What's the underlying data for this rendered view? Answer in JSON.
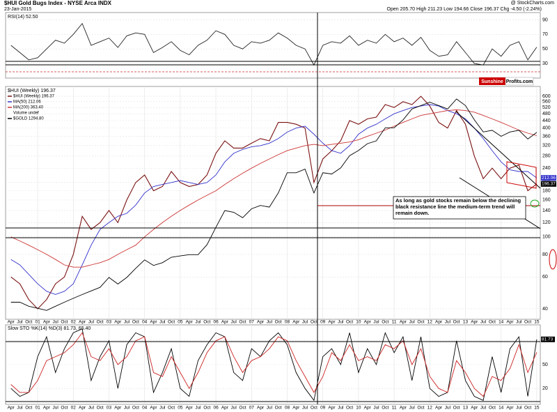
{
  "header": {
    "title": "$HUI Gold Bugs Index - NYSE Arca INDX",
    "date": "23-Jan-2015",
    "quote": "Open 205.70  High 211.23  Low 194.66  Close 196.37  Chg -4.50 (-2.24%)",
    "credit": "@ StockCharts.com"
  },
  "chart_data": [
    {
      "type": "line",
      "title": "RSI(14) 52.50",
      "x": [
        2000.25,
        2000.5,
        2000.75,
        2001,
        2001.25,
        2001.5,
        2001.75,
        2002,
        2002.25,
        2002.5,
        2002.75,
        2003,
        2003.25,
        2003.5,
        2003.75,
        2004,
        2004.25,
        2004.5,
        2004.75,
        2005,
        2005.25,
        2005.5,
        2005.75,
        2006,
        2006.25,
        2006.5,
        2006.75,
        2007,
        2007.25,
        2007.5,
        2007.75,
        2008,
        2008.25,
        2008.5,
        2008.75,
        2009,
        2009.25,
        2009.5,
        2009.75,
        2010,
        2010.25,
        2010.5,
        2010.75,
        2011,
        2011.25,
        2011.5,
        2011.75,
        2012,
        2012.25,
        2012.5,
        2012.75,
        2013,
        2013.25,
        2013.5,
        2013.75,
        2014,
        2014.25,
        2014.5,
        2014.75,
        2015
      ],
      "series": [
        {
          "name": "RSI(14)",
          "color": "#222222",
          "values": [
            55,
            45,
            35,
            38,
            50,
            62,
            58,
            70,
            85,
            55,
            60,
            65,
            52,
            68,
            72,
            70,
            45,
            52,
            60,
            48,
            42,
            55,
            62,
            75,
            70,
            55,
            50,
            60,
            58,
            62,
            72,
            65,
            55,
            50,
            28,
            55,
            60,
            58,
            68,
            55,
            62,
            58,
            70,
            60,
            65,
            55,
            66,
            48,
            40,
            42,
            60,
            45,
            30,
            28,
            50,
            40,
            55,
            60,
            35,
            52.5
          ]
        }
      ],
      "xlim": [
        2000.1,
        2015.1
      ],
      "ylim": [
        10,
        100
      ],
      "yticks": [
        30,
        50,
        70,
        90
      ],
      "grid": true
    },
    {
      "type": "line",
      "title": "$HUI (Weekly) 196.37",
      "log_scale": true,
      "legend_note": "Volume undef",
      "annotation": "As long as gold stocks remain below the declining black resistance line the medium-term trend will remain down.",
      "logo": [
        "Sunshine",
        "Profits.com"
      ],
      "x": [
        2000.25,
        2000.5,
        2000.75,
        2001,
        2001.25,
        2001.5,
        2001.75,
        2002,
        2002.25,
        2002.5,
        2002.75,
        2003,
        2003.25,
        2003.5,
        2003.75,
        2004,
        2004.25,
        2004.5,
        2004.75,
        2005,
        2005.25,
        2005.5,
        2005.75,
        2006,
        2006.25,
        2006.5,
        2006.75,
        2007,
        2007.25,
        2007.5,
        2007.75,
        2008,
        2008.25,
        2008.5,
        2008.75,
        2009,
        2009.25,
        2009.5,
        2009.75,
        2010,
        2010.25,
        2010.5,
        2010.75,
        2011,
        2011.25,
        2011.5,
        2011.75,
        2012,
        2012.25,
        2012.5,
        2012.75,
        2013,
        2013.25,
        2013.5,
        2013.75,
        2014,
        2014.25,
        2014.5,
        2014.75,
        2015
      ],
      "series": [
        {
          "name": "$HUI (Weekly) 196.37",
          "color": "#7a1010",
          "values": [
            60,
            55,
            45,
            40,
            45,
            55,
            60,
            80,
            130,
            110,
            120,
            140,
            120,
            160,
            200,
            220,
            180,
            190,
            230,
            200,
            190,
            195,
            220,
            290,
            340,
            310,
            310,
            330,
            350,
            340,
            430,
            430,
            420,
            400,
            200,
            270,
            300,
            340,
            440,
            420,
            450,
            460,
            540,
            520,
            560,
            540,
            600,
            530,
            430,
            400,
            500,
            420,
            280,
            210,
            240,
            210,
            240,
            250,
            180,
            196.37
          ]
        },
        {
          "name": "MA(50) 212.06",
          "color": "#3333cc",
          "values": [
            75,
            70,
            62,
            55,
            50,
            48,
            50,
            55,
            70,
            90,
            110,
            120,
            130,
            135,
            150,
            175,
            190,
            195,
            200,
            205,
            200,
            195,
            200,
            220,
            260,
            290,
            305,
            315,
            320,
            330,
            350,
            380,
            400,
            410,
            370,
            330,
            300,
            290,
            320,
            370,
            400,
            420,
            450,
            480,
            500,
            520,
            530,
            540,
            530,
            500,
            480,
            450,
            400,
            350,
            300,
            260,
            235,
            230,
            230,
            212.06
          ]
        },
        {
          "name": "MA(200) 363.40",
          "color": "#cc3333",
          "values": [
            100,
            95,
            90,
            85,
            80,
            75,
            70,
            68,
            68,
            70,
            72,
            75,
            80,
            85,
            90,
            100,
            110,
            120,
            130,
            140,
            150,
            160,
            170,
            180,
            195,
            210,
            225,
            240,
            255,
            270,
            285,
            300,
            310,
            320,
            325,
            320,
            325,
            330,
            335,
            345,
            360,
            375,
            390,
            410,
            430,
            450,
            470,
            480,
            490,
            500,
            505,
            500,
            490,
            470,
            450,
            430,
            410,
            390,
            375,
            363.4
          ]
        },
        {
          "name": "$GOLD 1294.80",
          "color": "#000000",
          "axis": "y2",
          "values": [
            280,
            280,
            270,
            265,
            260,
            270,
            280,
            290,
            300,
            310,
            320,
            350,
            330,
            350,
            380,
            410,
            390,
            400,
            420,
            425,
            430,
            430,
            470,
            550,
            640,
            630,
            600,
            650,
            670,
            660,
            750,
            900,
            900,
            930,
            750,
            900,
            890,
            940,
            1050,
            1100,
            1170,
            1200,
            1350,
            1350,
            1450,
            1600,
            1650,
            1700,
            1650,
            1600,
            1750,
            1650,
            1450,
            1300,
            1320,
            1250,
            1300,
            1320,
            1220,
            1294.8
          ]
        }
      ],
      "xlim": [
        2000.1,
        2015.1
      ],
      "ylim": [
        35,
        680
      ],
      "y2lim": [
        240,
        1960
      ],
      "yticks": [
        40,
        60,
        80,
        100,
        120,
        140,
        160,
        180,
        200,
        240,
        280,
        320,
        360,
        400,
        440,
        480,
        520,
        560,
        600
      ],
      "xticks": [
        {
          "value": 2000.25,
          "label": "Apr"
        },
        {
          "value": 2000.5,
          "label": "Jul"
        },
        {
          "value": 2000.75,
          "label": "Oct"
        },
        {
          "value": 2001,
          "label": "01"
        },
        {
          "value": 2001.25,
          "label": "Apr"
        },
        {
          "value": 2001.5,
          "label": "Jul"
        },
        {
          "value": 2001.75,
          "label": "Oct"
        },
        {
          "value": 2002,
          "label": "02"
        },
        {
          "value": 2002.25,
          "label": "Apr"
        },
        {
          "value": 2002.5,
          "label": "Jul"
        },
        {
          "value": 2002.75,
          "label": "Oct"
        },
        {
          "value": 2003,
          "label": "03"
        },
        {
          "value": 2003.25,
          "label": "Apr"
        },
        {
          "value": 2003.5,
          "label": "Jul"
        },
        {
          "value": 2003.75,
          "label": "Oct"
        },
        {
          "value": 2004,
          "label": "04"
        },
        {
          "value": 2004.25,
          "label": "Apr"
        },
        {
          "value": 2004.5,
          "label": "Jul"
        },
        {
          "value": 2004.75,
          "label": "Oct"
        },
        {
          "value": 2005,
          "label": "05"
        },
        {
          "value": 2005.25,
          "label": "Apr"
        },
        {
          "value": 2005.5,
          "label": "Jul"
        },
        {
          "value": 2005.75,
          "label": "Oct"
        },
        {
          "value": 2006,
          "label": "06"
        },
        {
          "value": 2006.25,
          "label": "Apr"
        },
        {
          "value": 2006.5,
          "label": "Jul"
        },
        {
          "value": 2006.75,
          "label": "Oct"
        },
        {
          "value": 2007,
          "label": "07"
        },
        {
          "value": 2007.25,
          "label": "Apr"
        },
        {
          "value": 2007.5,
          "label": "Jul"
        },
        {
          "value": 2007.75,
          "label": "Oct"
        },
        {
          "value": 2008,
          "label": "08"
        },
        {
          "value": 2008.25,
          "label": "Apr"
        },
        {
          "value": 2008.5,
          "label": "Jul"
        },
        {
          "value": 2008.75,
          "label": "Oct"
        },
        {
          "value": 2009,
          "label": "09"
        },
        {
          "value": 2009.25,
          "label": "Apr"
        },
        {
          "value": 2009.5,
          "label": "Jul"
        },
        {
          "value": 2009.75,
          "label": "Oct"
        },
        {
          "value": 2010,
          "label": "10"
        },
        {
          "value": 2010.25,
          "label": "Apr"
        },
        {
          "value": 2010.5,
          "label": "Jul"
        },
        {
          "value": 2010.75,
          "label": "Oct"
        },
        {
          "value": 2011,
          "label": "11"
        },
        {
          "value": 2011.25,
          "label": "Apr"
        },
        {
          "value": 2011.5,
          "label": "Jul"
        },
        {
          "value": 2011.75,
          "label": "Oct"
        },
        {
          "value": 2012,
          "label": "12"
        },
        {
          "value": 2012.25,
          "label": "Apr"
        },
        {
          "value": 2012.5,
          "label": "Jul"
        },
        {
          "value": 2012.75,
          "label": "Oct"
        },
        {
          "value": 2013,
          "label": "13"
        },
        {
          "value": 2013.25,
          "label": "Apr"
        },
        {
          "value": 2013.5,
          "label": "Jul"
        },
        {
          "value": 2013.75,
          "label": "Oct"
        },
        {
          "value": 2014,
          "label": "14"
        },
        {
          "value": 2014.25,
          "label": "Apr"
        },
        {
          "value": 2014.5,
          "label": "Jul"
        },
        {
          "value": 2014.75,
          "label": "Oct"
        },
        {
          "value": 2015,
          "label": "15"
        }
      ],
      "grid": true
    },
    {
      "type": "line",
      "title": "Slow STO %K(14) %D(3) 81.73, 65.40",
      "x": [
        2000.25,
        2000.5,
        2000.75,
        2001,
        2001.25,
        2001.5,
        2001.75,
        2002,
        2002.25,
        2002.5,
        2002.75,
        2003,
        2003.25,
        2003.5,
        2003.75,
        2004,
        2004.25,
        2004.5,
        2004.75,
        2005,
        2005.25,
        2005.5,
        2005.75,
        2006,
        2006.25,
        2006.5,
        2006.75,
        2007,
        2007.25,
        2007.5,
        2007.75,
        2008,
        2008.25,
        2008.5,
        2008.75,
        2009,
        2009.25,
        2009.5,
        2009.75,
        2010,
        2010.25,
        2010.5,
        2010.75,
        2011,
        2011.25,
        2011.5,
        2011.75,
        2012,
        2012.25,
        2012.5,
        2012.75,
        2013,
        2013.25,
        2013.5,
        2013.75,
        2014,
        2014.25,
        2014.5,
        2014.75,
        2015
      ],
      "series": [
        {
          "name": "%K(14)",
          "color": "#000000",
          "values": [
            20,
            10,
            15,
            60,
            85,
            40,
            70,
            90,
            95,
            30,
            60,
            80,
            20,
            75,
            90,
            85,
            15,
            40,
            70,
            20,
            10,
            55,
            75,
            90,
            85,
            40,
            30,
            70,
            60,
            80,
            90,
            75,
            40,
            20,
            5,
            60,
            70,
            50,
            90,
            40,
            70,
            50,
            90,
            65,
            85,
            30,
            85,
            20,
            10,
            15,
            80,
            30,
            10,
            5,
            60,
            15,
            70,
            85,
            10,
            81.73
          ]
        },
        {
          "name": "%D(3)",
          "color": "#cc2222",
          "values": [
            25,
            15,
            15,
            30,
            55,
            60,
            65,
            75,
            90,
            60,
            55,
            70,
            50,
            60,
            80,
            85,
            40,
            35,
            60,
            40,
            20,
            40,
            65,
            80,
            85,
            60,
            40,
            55,
            60,
            70,
            85,
            80,
            55,
            35,
            15,
            35,
            65,
            55,
            75,
            55,
            60,
            55,
            75,
            70,
            80,
            50,
            70,
            35,
            20,
            15,
            55,
            40,
            20,
            10,
            35,
            30,
            45,
            75,
            40,
            65.4
          ]
        }
      ],
      "xlim": [
        2000.1,
        2015.1
      ],
      "ylim": [
        0,
        100
      ],
      "yticks": [
        20,
        50,
        80
      ],
      "grid": true
    }
  ]
}
